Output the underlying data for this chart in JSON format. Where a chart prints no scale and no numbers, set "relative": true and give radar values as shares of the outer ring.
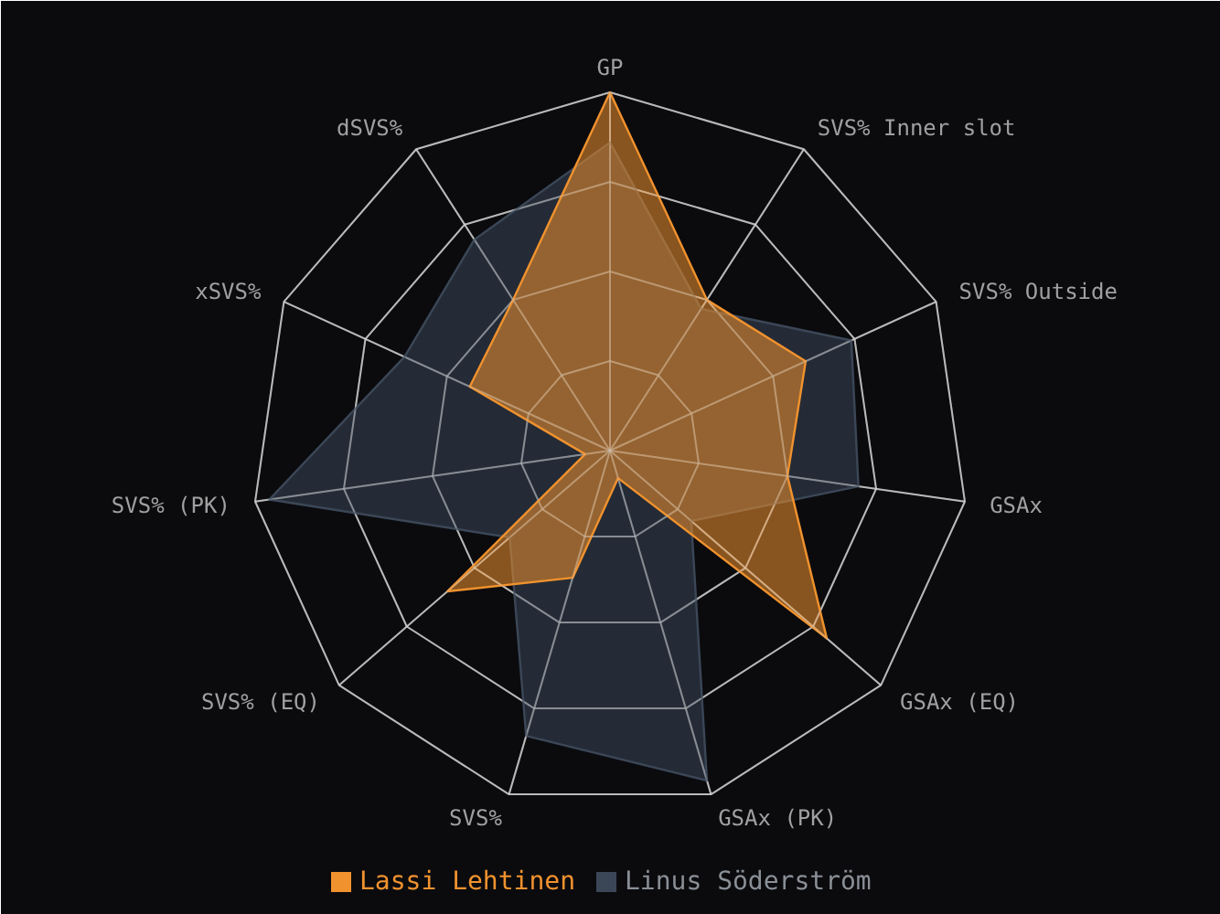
{
  "chart_data": {
    "type": "radar",
    "relative": true,
    "grid": true,
    "legend": "bottom",
    "categories": [
      "GP",
      "SVS% Inner slot",
      "SVS% Outside",
      "GSAx",
      "GSAx (EQ)",
      "GSAx (PK)",
      "SVS%",
      "SVS% (EQ)",
      "SVS% (PK)",
      "xSVS%",
      "dSVS%"
    ],
    "series": [
      {
        "name": "Linus Söderström",
        "color": "#3b4757",
        "values": [
          0.86,
          0.47,
          0.74,
          0.7,
          0.3,
          0.96,
          0.83,
          0.37,
          0.96,
          0.63,
          0.7
        ]
      },
      {
        "name": "Lassi Lehtinen",
        "color": "#f0922e",
        "values": [
          1.0,
          0.5,
          0.6,
          0.5,
          0.8,
          0.08,
          0.37,
          0.6,
          0.07,
          0.43,
          0.5
        ]
      }
    ]
  }
}
